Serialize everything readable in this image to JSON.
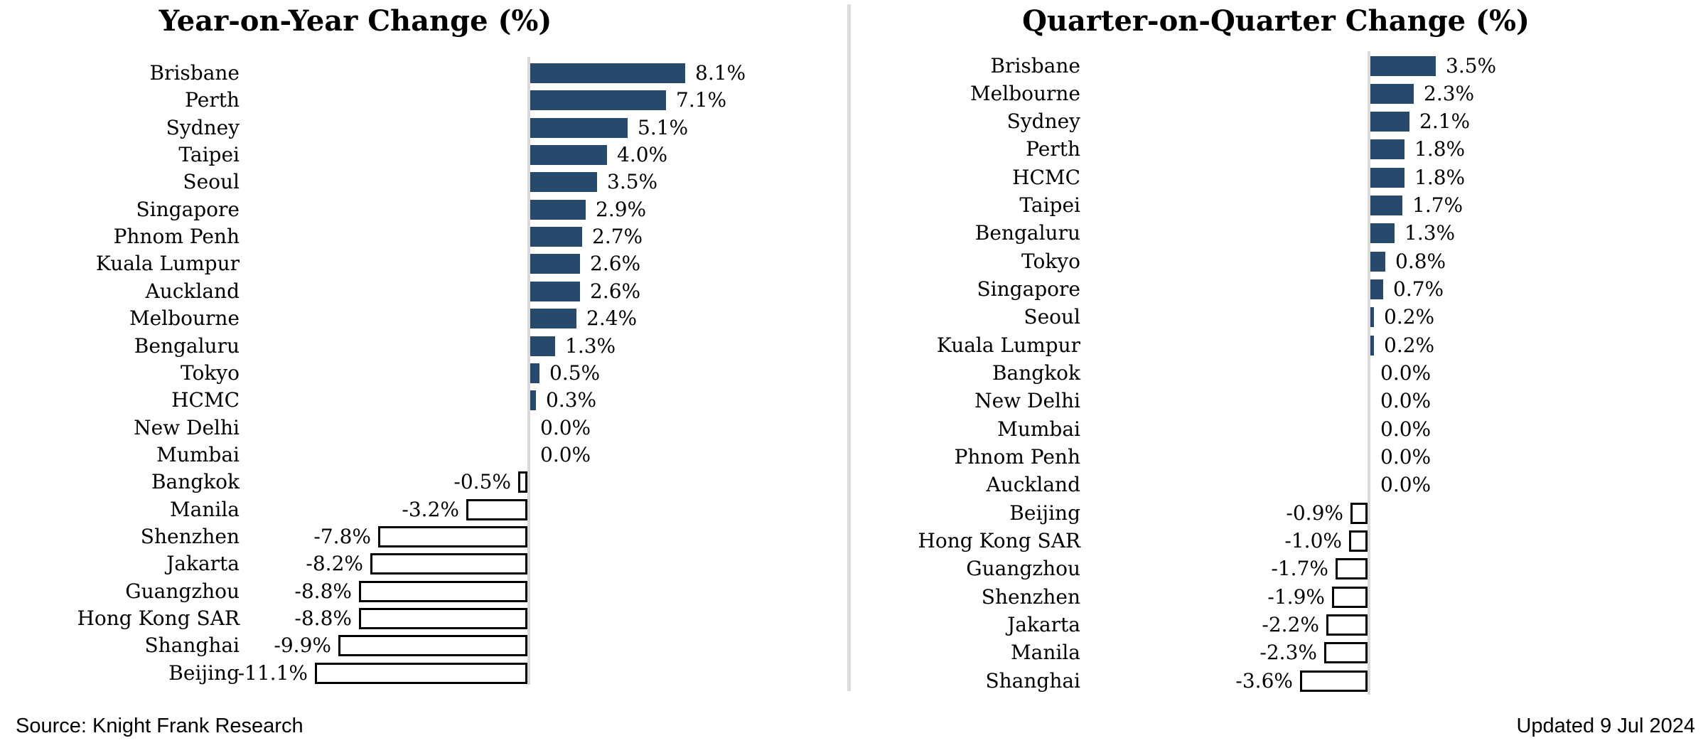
{
  "chart_data": [
    {
      "type": "bar",
      "orientation": "horizontal",
      "title": "Year-on-Year Change (%)",
      "xlabel": "",
      "ylabel": "",
      "legend": "none",
      "grid": false,
      "value_label_position": "outside-end",
      "xlim": [
        -12,
        9
      ],
      "points": [
        {
          "city": "Brisbane",
          "value": 8.1,
          "label": "8.1%"
        },
        {
          "city": "Perth",
          "value": 7.1,
          "label": "7.1%"
        },
        {
          "city": "Sydney",
          "value": 5.1,
          "label": "5.1%"
        },
        {
          "city": "Taipei",
          "value": 4.0,
          "label": "4.0%"
        },
        {
          "city": "Seoul",
          "value": 3.5,
          "label": "3.5%"
        },
        {
          "city": "Singapore",
          "value": 2.9,
          "label": "2.9%"
        },
        {
          "city": "Phnom Penh",
          "value": 2.7,
          "label": "2.7%"
        },
        {
          "city": "Kuala Lumpur",
          "value": 2.6,
          "label": "2.6%"
        },
        {
          "city": "Auckland",
          "value": 2.6,
          "label": "2.6%"
        },
        {
          "city": "Melbourne",
          "value": 2.4,
          "label": "2.4%"
        },
        {
          "city": "Bengaluru",
          "value": 1.3,
          "label": "1.3%"
        },
        {
          "city": "Tokyo",
          "value": 0.5,
          "label": "0.5%"
        },
        {
          "city": "HCMC",
          "value": 0.3,
          "label": "0.3%"
        },
        {
          "city": "New Delhi",
          "value": 0.0,
          "label": "0.0%"
        },
        {
          "city": "Mumbai",
          "value": 0.0,
          "label": "0.0%"
        },
        {
          "city": "Bangkok",
          "value": -0.5,
          "label": "-0.5%"
        },
        {
          "city": "Manila",
          "value": -3.2,
          "label": "-3.2%"
        },
        {
          "city": "Shenzhen",
          "value": -7.8,
          "label": "-7.8%"
        },
        {
          "city": "Jakarta",
          "value": -8.2,
          "label": "-8.2%"
        },
        {
          "city": "Guangzhou",
          "value": -8.8,
          "label": "-8.8%"
        },
        {
          "city": "Hong Kong SAR",
          "value": -8.8,
          "label": "-8.8%"
        },
        {
          "city": "Shanghai",
          "value": -9.9,
          "label": "-9.9%"
        },
        {
          "city": "Beijing",
          "value": -11.1,
          "label": "-11.1%"
        }
      ]
    },
    {
      "type": "bar",
      "orientation": "horizontal",
      "title": "Quarter-on-Quarter Change (%)",
      "xlabel": "",
      "ylabel": "",
      "legend": "none",
      "grid": false,
      "value_label_position": "outside-end",
      "xlim": [
        -4,
        4
      ],
      "points": [
        {
          "city": "Brisbane",
          "value": 3.5,
          "label": "3.5%"
        },
        {
          "city": "Melbourne",
          "value": 2.3,
          "label": "2.3%"
        },
        {
          "city": "Sydney",
          "value": 2.1,
          "label": "2.1%"
        },
        {
          "city": "Perth",
          "value": 1.8,
          "label": "1.8%"
        },
        {
          "city": "HCMC",
          "value": 1.8,
          "label": "1.8%"
        },
        {
          "city": "Taipei",
          "value": 1.7,
          "label": "1.7%"
        },
        {
          "city": "Bengaluru",
          "value": 1.3,
          "label": "1.3%"
        },
        {
          "city": "Tokyo",
          "value": 0.8,
          "label": "0.8%"
        },
        {
          "city": "Singapore",
          "value": 0.7,
          "label": "0.7%"
        },
        {
          "city": "Seoul",
          "value": 0.2,
          "label": "0.2%"
        },
        {
          "city": "Kuala Lumpur",
          "value": 0.2,
          "label": "0.2%"
        },
        {
          "city": "Bangkok",
          "value": 0.0,
          "label": "0.0%"
        },
        {
          "city": "New Delhi",
          "value": 0.0,
          "label": "0.0%"
        },
        {
          "city": "Mumbai",
          "value": 0.0,
          "label": "0.0%"
        },
        {
          "city": "Phnom Penh",
          "value": 0.0,
          "label": "0.0%"
        },
        {
          "city": "Auckland",
          "value": 0.0,
          "label": "0.0%"
        },
        {
          "city": "Beijing",
          "value": -0.9,
          "label": "-0.9%"
        },
        {
          "city": "Hong Kong SAR",
          "value": -1.0,
          "label": "-1.0%"
        },
        {
          "city": "Guangzhou",
          "value": -1.7,
          "label": "-1.7%"
        },
        {
          "city": "Shenzhen",
          "value": -1.9,
          "label": "-1.9%"
        },
        {
          "city": "Jakarta",
          "value": -2.2,
          "label": "-2.2%"
        },
        {
          "city": "Manila",
          "value": -2.3,
          "label": "-2.3%"
        },
        {
          "city": "Shanghai",
          "value": -3.6,
          "label": "-3.6%"
        }
      ]
    }
  ],
  "footer": {
    "source": "Source: Knight Frank Research",
    "updated": "Updated 9 Jul 2024"
  },
  "colors": {
    "bar_positive": "#26496c",
    "bar_negative_fill": "#ffffff",
    "bar_negative_border": "#000000",
    "axis_line": "#d9d9d9",
    "divider": "#dcdcdc",
    "text": "#000000"
  }
}
